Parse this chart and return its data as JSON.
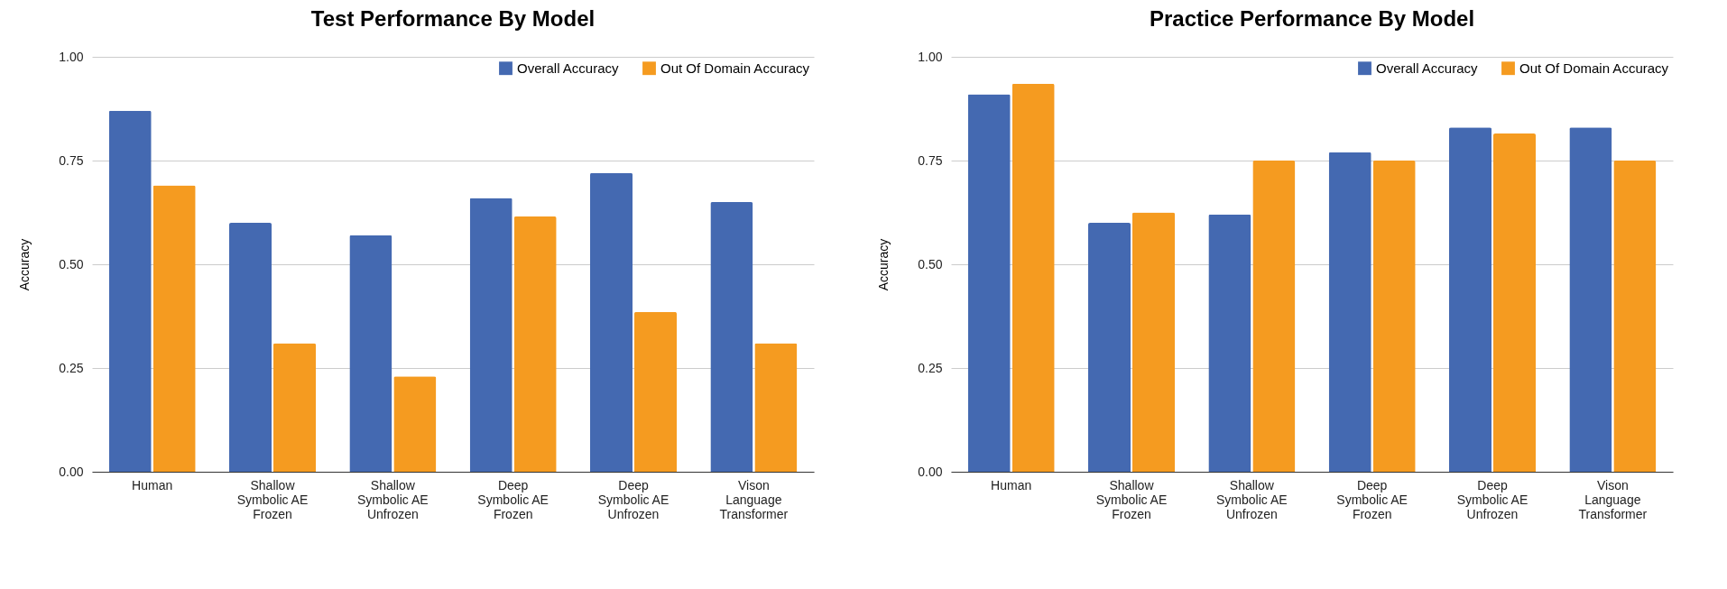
{
  "chart_data": [
    {
      "type": "bar",
      "title": "Test Performance By Model",
      "ylabel": "Accuracy",
      "categories": [
        "Human",
        "Shallow Symbolic AE Frozen",
        "Shallow Symbolic AE Unfrozen",
        "Deep Symbolic AE Frozen",
        "Deep Symbolic AE Unfrozen",
        "Vison Language Transformer"
      ],
      "series": [
        {
          "name": "Overall Accuracy",
          "color": "#4469b1",
          "values": [
            0.87,
            0.6,
            0.57,
            0.66,
            0.72,
            0.65
          ]
        },
        {
          "name": "Out Of Domain Accuracy",
          "color": "#f59b20",
          "values": [
            0.69,
            0.31,
            0.23,
            0.615,
            0.385,
            0.31
          ]
        }
      ],
      "ylim": [
        0,
        1
      ],
      "yticks": [
        {
          "value": 0,
          "label": "0.00"
        },
        {
          "value": 0.25,
          "label": "0.25"
        },
        {
          "value": 0.5,
          "label": "0.50"
        },
        {
          "value": 0.75,
          "label": "0.75"
        },
        {
          "value": 1,
          "label": "1.00"
        }
      ],
      "grid": "y",
      "legend": "top right"
    },
    {
      "type": "bar",
      "title": "Practice Performance By Model",
      "ylabel": "Accuracy",
      "categories": [
        "Human",
        "Shallow Symbolic AE Frozen",
        "Shallow Symbolic AE Unfrozen",
        "Deep Symbolic AE Frozen",
        "Deep Symbolic AE Unfrozen",
        "Vison Language Transformer"
      ],
      "series": [
        {
          "name": "Overall Accuracy",
          "color": "#4469b1",
          "values": [
            0.91,
            0.6,
            0.62,
            0.77,
            0.83,
            0.83
          ]
        },
        {
          "name": "Out Of Domain Accuracy",
          "color": "#f59b20",
          "values": [
            0.935,
            0.625,
            0.75,
            0.75,
            0.815,
            0.75
          ]
        }
      ],
      "ylim": [
        0,
        1
      ],
      "yticks": [
        {
          "value": 0,
          "label": "0.00"
        },
        {
          "value": 0.25,
          "label": "0.25"
        },
        {
          "value": 0.5,
          "label": "0.50"
        },
        {
          "value": 0.75,
          "label": "0.75"
        },
        {
          "value": 1,
          "label": "1.00"
        }
      ],
      "grid": "y",
      "legend": "top right"
    }
  ]
}
